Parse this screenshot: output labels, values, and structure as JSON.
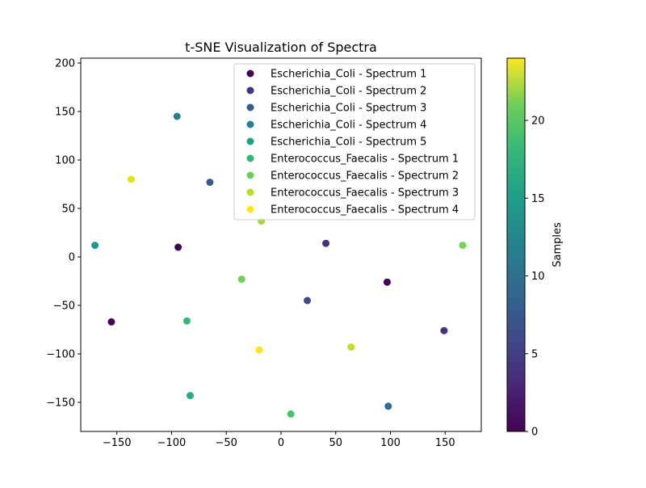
{
  "chart_data": {
    "type": "scatter",
    "title": "t-SNE Visualization of Spectra",
    "xlabel": "",
    "ylabel": "",
    "xlim": [
      -183,
      183
    ],
    "ylim": [
      -180,
      205
    ],
    "xticks": [
      -150,
      -100,
      -50,
      0,
      50,
      100,
      150
    ],
    "yticks": [
      -150,
      -100,
      -50,
      0,
      50,
      100,
      150,
      200
    ],
    "xtick_labels": [
      "−150",
      "−100",
      "−50",
      "0",
      "50",
      "100",
      "150"
    ],
    "ytick_labels": [
      "−150",
      "−100",
      "−50",
      "0",
      "50",
      "100",
      "150",
      "200"
    ],
    "grid": false,
    "legend_position": "top-right",
    "colorbar": {
      "label": "Samples",
      "range": [
        0,
        24
      ],
      "ticks": [
        0,
        5,
        10,
        15,
        20
      ],
      "tick_labels": [
        "0",
        "5",
        "10",
        "15",
        "20"
      ],
      "colormap": "viridis"
    },
    "legend_entries": [
      {
        "name": "Escherichia_Coli - Spectrum 1",
        "color": "#440154"
      },
      {
        "name": "Escherichia_Coli - Spectrum 2",
        "color": "#46327e"
      },
      {
        "name": "Escherichia_Coli - Spectrum 3",
        "color": "#365c8d"
      },
      {
        "name": "Escherichia_Coli - Spectrum 4",
        "color": "#277f8e"
      },
      {
        "name": "Escherichia_Coli - Spectrum 5",
        "color": "#1fa187"
      },
      {
        "name": "Enterococcus_Faecalis - Spectrum 1",
        "color": "#35b779"
      },
      {
        "name": "Enterococcus_Faecalis - Spectrum 2",
        "color": "#6ece58"
      },
      {
        "name": "Enterococcus_Faecalis - Spectrum 3",
        "color": "#b5de2b"
      },
      {
        "name": "Enterococcus_Faecalis - Spectrum 4",
        "color": "#fde725"
      }
    ],
    "points": [
      {
        "x": -155,
        "y": -67,
        "color": "#440154"
      },
      {
        "x": -94,
        "y": 10,
        "color": "#440154"
      },
      {
        "x": 97,
        "y": -26,
        "color": "#440154"
      },
      {
        "x": 149,
        "y": -76,
        "color": "#46327e"
      },
      {
        "x": 41,
        "y": 14,
        "color": "#46327e"
      },
      {
        "x": 24,
        "y": -45,
        "color": "#3e4a89"
      },
      {
        "x": -65,
        "y": 77,
        "color": "#365c8d"
      },
      {
        "x": 98,
        "y": -154,
        "color": "#2e6e8e"
      },
      {
        "x": -95,
        "y": 145,
        "color": "#277f8e"
      },
      {
        "x": -170,
        "y": 12,
        "color": "#1f9a8a"
      },
      {
        "x": -86,
        "y": -66,
        "color": "#35b779"
      },
      {
        "x": -83,
        "y": -143,
        "color": "#29af7f"
      },
      {
        "x": -36,
        "y": -23,
        "color": "#6ece58"
      },
      {
        "x": 9,
        "y": -162,
        "color": "#4ac16d"
      },
      {
        "x": 166,
        "y": 12,
        "color": "#7ad151"
      },
      {
        "x": -18,
        "y": 37,
        "color": "#a0da39"
      },
      {
        "x": 64,
        "y": -93,
        "color": "#bddf26"
      },
      {
        "x": -137,
        "y": 80,
        "color": "#dfe318"
      },
      {
        "x": -20,
        "y": -96,
        "color": "#fde725"
      }
    ]
  }
}
